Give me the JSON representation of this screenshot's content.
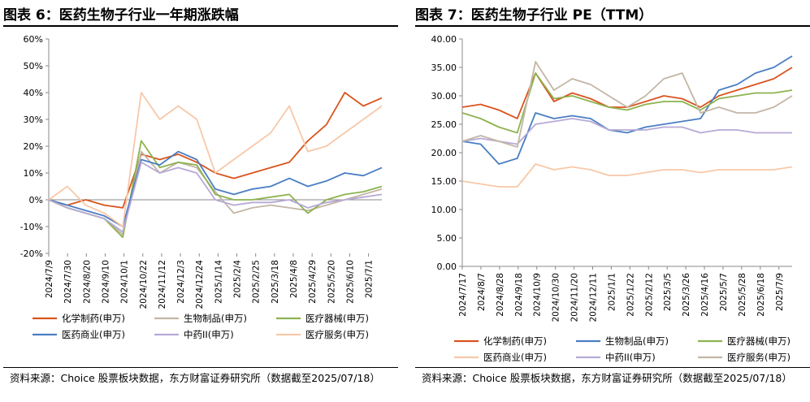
{
  "left": {
    "figure_title": "图表 6：医药生物子行业一年期涨跌幅",
    "source": "资料来源：Choice 股票板块数据，东方财富证券研究所（数据截至2025/07/18）"
  },
  "right": {
    "figure_title": "图表 7：医药生物子行业 PE（TTM）",
    "source": "资料来源：Choice 股票板块数据，东方财富证券研究所（数据截至2025/07/18）"
  },
  "chart_data": [
    {
      "type": "line",
      "title": "医药生物子行业一年期涨跌幅",
      "ylabel": "",
      "xlabel": "",
      "ylim": [
        -20,
        60
      ],
      "yticks": [
        -20,
        -10,
        0,
        10,
        20,
        30,
        40,
        50,
        60
      ],
      "ytick_labels": [
        "-20%",
        "-10%",
        "0%",
        "10%",
        "20%",
        "30%",
        "40%",
        "50%",
        "60%"
      ],
      "x_tick_labels": [
        "2024/7/9",
        "2024/7/30",
        "2024/8/20",
        "2024/9/10",
        "2024/10/1",
        "2024/10/22",
        "2024/11/12",
        "2024/12/3",
        "2024/12/24",
        "2025/1/14",
        "2025/2/4",
        "2025/2/25",
        "2025/3/18",
        "2025/4/8",
        "2025/4/29",
        "2025/5/20",
        "2025/6/10",
        "2025/7/1"
      ],
      "grid": false,
      "legend_position": "bottom",
      "series": [
        {
          "name": "化学制药(申万)",
          "color": "#D9541E",
          "x": [
            0,
            3,
            6,
            9,
            12,
            15,
            18,
            21,
            24,
            27,
            30,
            33,
            36,
            39,
            42,
            45,
            48,
            51,
            54
          ],
          "values": [
            0,
            -2,
            0,
            -2,
            -3,
            17,
            15,
            17,
            14,
            10,
            8,
            10,
            12,
            14,
            22,
            28,
            40,
            35,
            38
          ]
        },
        {
          "name": "生物制品(申万)",
          "color": "#C3B6A6",
          "x": [
            0,
            3,
            6,
            9,
            12,
            15,
            18,
            21,
            24,
            27,
            30,
            33,
            36,
            39,
            42,
            45,
            48,
            51,
            54
          ],
          "values": [
            0,
            -3,
            -5,
            -7,
            -13,
            18,
            10,
            14,
            12,
            3,
            -5,
            -3,
            -2,
            -3,
            -4,
            -2,
            0,
            2,
            4
          ]
        },
        {
          "name": "医疗器械(申万)",
          "color": "#8DB34F",
          "x": [
            0,
            3,
            6,
            9,
            12,
            15,
            18,
            21,
            24,
            27,
            30,
            33,
            36,
            39,
            42,
            45,
            48,
            51,
            54
          ],
          "values": [
            0,
            -3,
            -5,
            -7,
            -14,
            22,
            12,
            14,
            13,
            2,
            0,
            0,
            1,
            2,
            -5,
            0,
            2,
            3,
            5
          ]
        },
        {
          "name": "医药商业(申万)",
          "color": "#4A7EC3",
          "x": [
            0,
            3,
            6,
            9,
            12,
            15,
            18,
            21,
            24,
            27,
            30,
            33,
            36,
            39,
            42,
            45,
            48,
            51,
            54
          ],
          "values": [
            0,
            -2,
            -4,
            -6,
            -10,
            15,
            13,
            18,
            15,
            4,
            2,
            4,
            5,
            8,
            5,
            7,
            10,
            9,
            12
          ]
        },
        {
          "name": "中药II(申万)",
          "color": "#B6A9D6",
          "x": [
            0,
            3,
            6,
            9,
            12,
            15,
            18,
            21,
            24,
            27,
            30,
            33,
            36,
            39,
            42,
            45,
            48,
            51,
            54
          ],
          "values": [
            0,
            -3,
            -5,
            -7,
            -12,
            14,
            10,
            12,
            10,
            0,
            -2,
            -1,
            -1,
            0,
            -3,
            -1,
            0,
            1,
            2
          ]
        },
        {
          "name": "医疗服务(申万)",
          "color": "#F8C8A8",
          "x": [
            0,
            3,
            6,
            9,
            12,
            15,
            18,
            21,
            24,
            27,
            30,
            33,
            36,
            39,
            42,
            45,
            48,
            51,
            54
          ],
          "values": [
            0,
            5,
            -2,
            -5,
            -10,
            40,
            30,
            35,
            30,
            10,
            15,
            20,
            25,
            35,
            18,
            20,
            25,
            30,
            35
          ]
        }
      ]
    },
    {
      "type": "line",
      "title": "医药生物子行业 PE（TTM）",
      "ylabel": "",
      "xlabel": "",
      "ylim": [
        0,
        40
      ],
      "yticks": [
        0,
        5,
        10,
        15,
        20,
        25,
        30,
        35,
        40
      ],
      "ytick_labels": [
        "0.00",
        "5.00",
        "10.00",
        "15.00",
        "20.00",
        "25.00",
        "30.00",
        "35.00",
        "40.00"
      ],
      "x_tick_labels": [
        "2024/7/17",
        "2024/8/7",
        "2024/8/28",
        "2024/9/18",
        "2024/10/9",
        "2024/10/30",
        "2024/11/20",
        "2024/12/11",
        "2025/1/1",
        "2025/1/22",
        "2025/2/12",
        "2025/3/5",
        "2025/3/26",
        "2025/4/16",
        "2025/5/7",
        "2025/5/28",
        "2025/6/18",
        "2025/7/9"
      ],
      "grid": false,
      "legend_position": "bottom",
      "series": [
        {
          "name": "化学制药(申万)",
          "color": "#D9541E",
          "x": [
            0,
            3,
            6,
            9,
            12,
            15,
            18,
            21,
            24,
            27,
            30,
            33,
            36,
            39,
            42,
            45,
            48,
            51,
            54
          ],
          "values": [
            28,
            28.5,
            27.5,
            26,
            34,
            29,
            30.5,
            29.5,
            28,
            28,
            29,
            30,
            29.5,
            28,
            30,
            31,
            32,
            33,
            35
          ]
        },
        {
          "name": "生物制品(申万)",
          "color": "#4A7EC3",
          "x": [
            0,
            3,
            6,
            9,
            12,
            15,
            18,
            21,
            24,
            27,
            30,
            33,
            36,
            39,
            42,
            45,
            48,
            51,
            54
          ],
          "values": [
            22,
            21.5,
            18,
            19,
            27,
            26,
            26.5,
            26,
            24,
            23.5,
            24.5,
            25,
            25.5,
            26,
            31,
            32,
            34,
            35,
            37
          ]
        },
        {
          "name": "医疗器械(申万)",
          "color": "#8DB34F",
          "x": [
            0,
            3,
            6,
            9,
            12,
            15,
            18,
            21,
            24,
            27,
            30,
            33,
            36,
            39,
            42,
            45,
            48,
            51,
            54
          ],
          "values": [
            27,
            26,
            24.5,
            23.5,
            34,
            29.5,
            30,
            29,
            28,
            27.5,
            28.5,
            29,
            29,
            27.5,
            29.5,
            30,
            30.5,
            30.5,
            31
          ]
        },
        {
          "name": "医药商业(申万)",
          "color": "#F8C8A8",
          "x": [
            0,
            3,
            6,
            9,
            12,
            15,
            18,
            21,
            24,
            27,
            30,
            33,
            36,
            39,
            42,
            45,
            48,
            51,
            54
          ],
          "values": [
            15,
            14.5,
            14,
            14,
            18,
            17,
            17.5,
            17,
            16,
            16,
            16.5,
            17,
            17,
            16.5,
            17,
            17,
            17,
            17,
            17.5
          ]
        },
        {
          "name": "中药II(申万)",
          "color": "#B6A9D6",
          "x": [
            0,
            3,
            6,
            9,
            12,
            15,
            18,
            21,
            24,
            27,
            30,
            33,
            36,
            39,
            42,
            45,
            48,
            51,
            54
          ],
          "values": [
            22,
            22.5,
            22,
            21.5,
            25,
            25.5,
            26,
            25.5,
            24,
            24,
            24,
            24.5,
            24.5,
            23.5,
            24,
            24,
            23.5,
            23.5,
            23.5
          ]
        },
        {
          "name": "医疗服务(申万)",
          "color": "#C3B6A6",
          "x": [
            0,
            3,
            6,
            9,
            12,
            15,
            18,
            21,
            24,
            27,
            30,
            33,
            36,
            39,
            42,
            45,
            48,
            51,
            54
          ],
          "values": [
            22,
            23,
            22,
            21,
            36,
            31,
            33,
            32,
            30,
            28,
            30,
            33,
            34,
            27,
            28,
            27,
            27,
            28,
            30
          ]
        }
      ]
    }
  ]
}
